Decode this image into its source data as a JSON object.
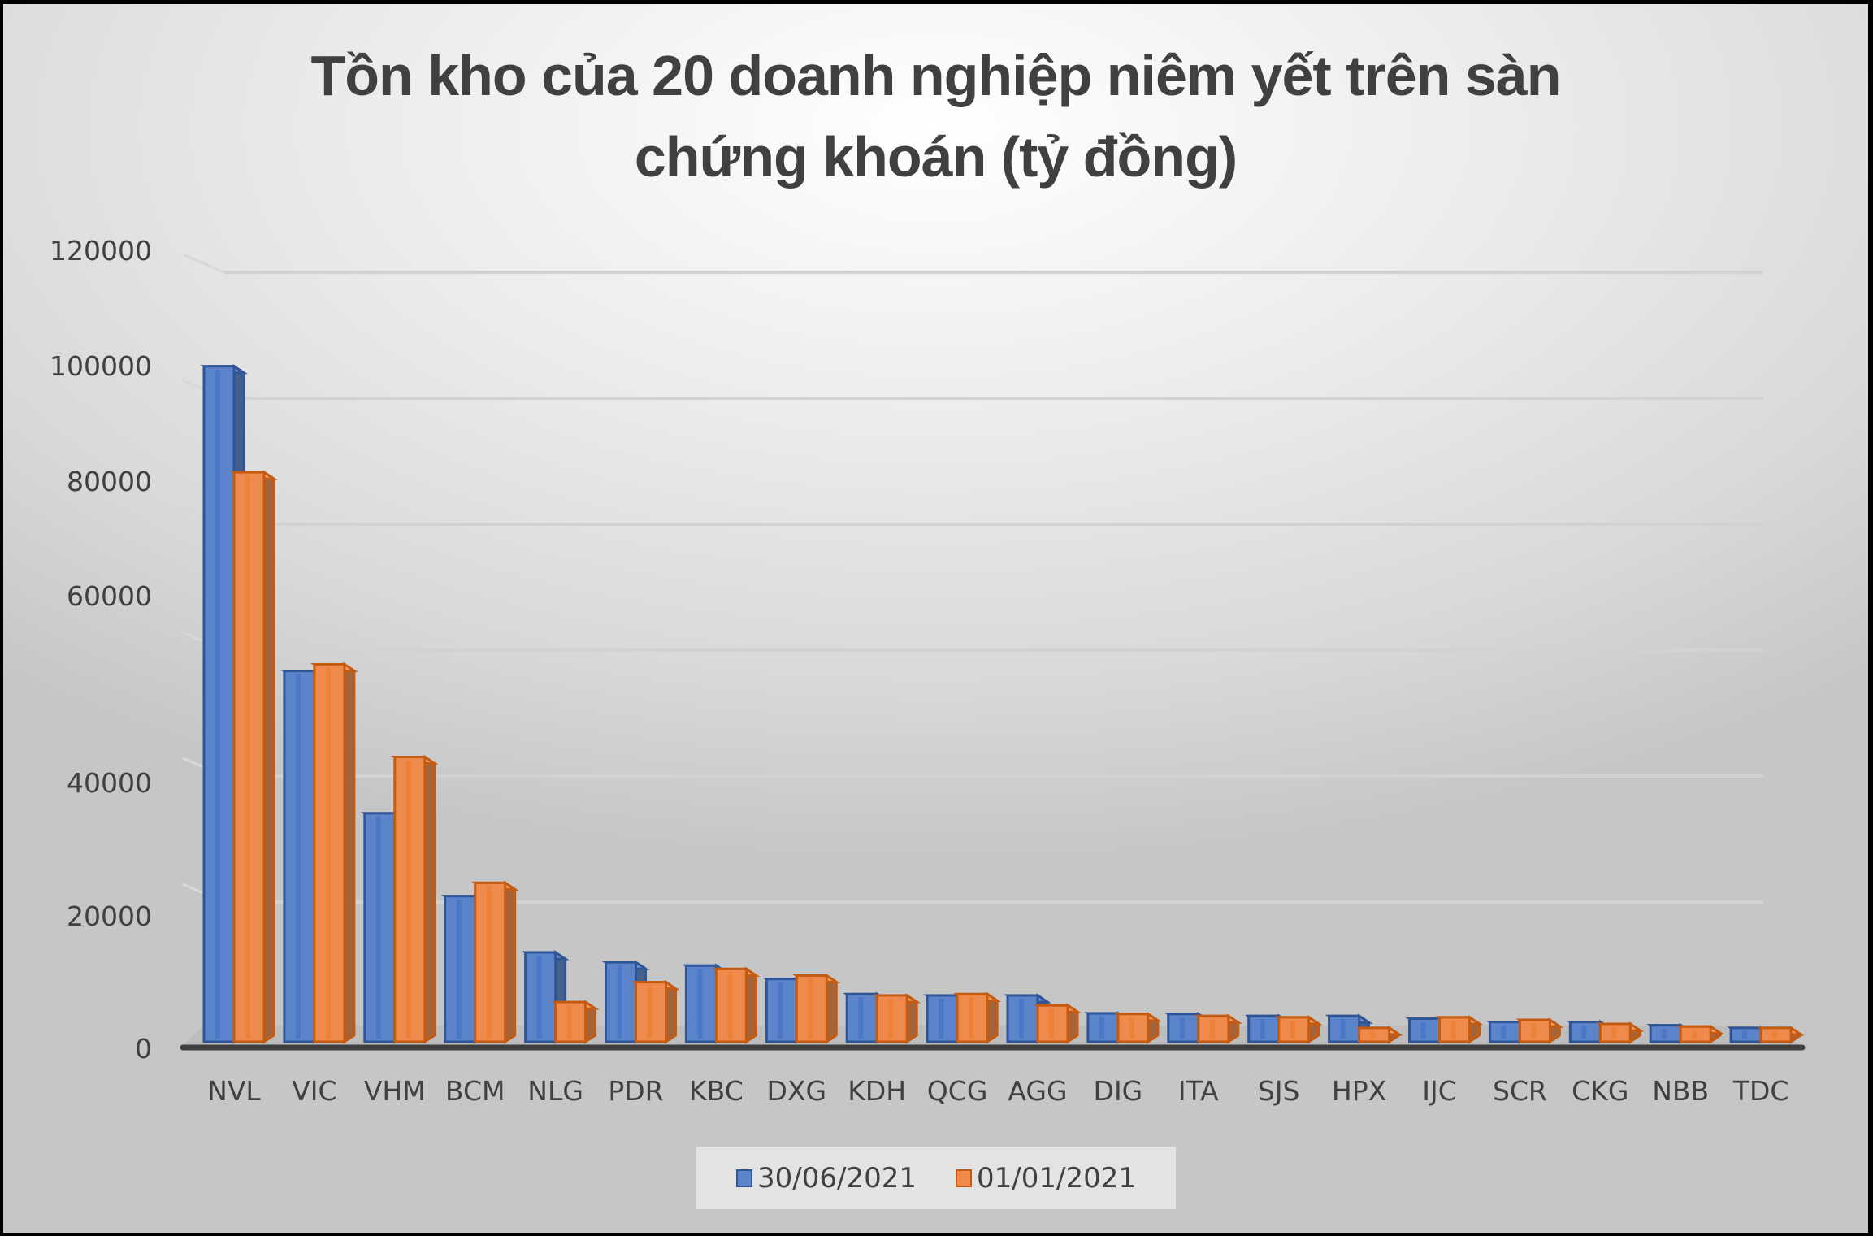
{
  "chart_data": {
    "type": "bar",
    "title": "Tồn kho của 20 doanh nghiệp niêm yết trên sàn chứng khoán (tỷ đồng)",
    "title_lines": [
      "Tồn kho của 20 doanh nghiệp niêm yết trên sàn",
      "chứng khoán (tỷ đồng)"
    ],
    "xlabel": "",
    "ylabel": "",
    "ylim": [
      0,
      120000
    ],
    "yticks": [
      0,
      20000,
      40000,
      60000,
      80000,
      100000,
      120000
    ],
    "grid": true,
    "legend_position": "bottom",
    "style": "3d-clustered-column",
    "categories": [
      "NVL",
      "VIC",
      "VHM",
      "BCM",
      "NLG",
      "PDR",
      "KBC",
      "DXG",
      "KDH",
      "QCG",
      "AGG",
      "DIG",
      "ITA",
      "SJS",
      "HPX",
      "IJC",
      "SCR",
      "CKG",
      "NBB",
      "TDC"
    ],
    "series": [
      {
        "name": "30/06/2021",
        "color": "#4472C4",
        "values": [
          102000,
          56000,
          34500,
          22000,
          13500,
          12000,
          11500,
          9500,
          7200,
          7000,
          7000,
          4300,
          4200,
          3900,
          3900,
          3500,
          3000,
          3000,
          2500,
          2100
        ]
      },
      {
        "name": "01/01/2021",
        "color": "#ED7D31",
        "values": [
          86000,
          57000,
          43000,
          24000,
          6000,
          9000,
          11000,
          10000,
          7000,
          7200,
          5500,
          4200,
          3900,
          3700,
          2100,
          3700,
          3300,
          2700,
          2300,
          2100
        ]
      }
    ]
  },
  "legend": {
    "items": [
      {
        "label": "30/06/2021",
        "color": "#4472C4"
      },
      {
        "label": "01/01/2021",
        "color": "#ED7D31"
      }
    ]
  }
}
